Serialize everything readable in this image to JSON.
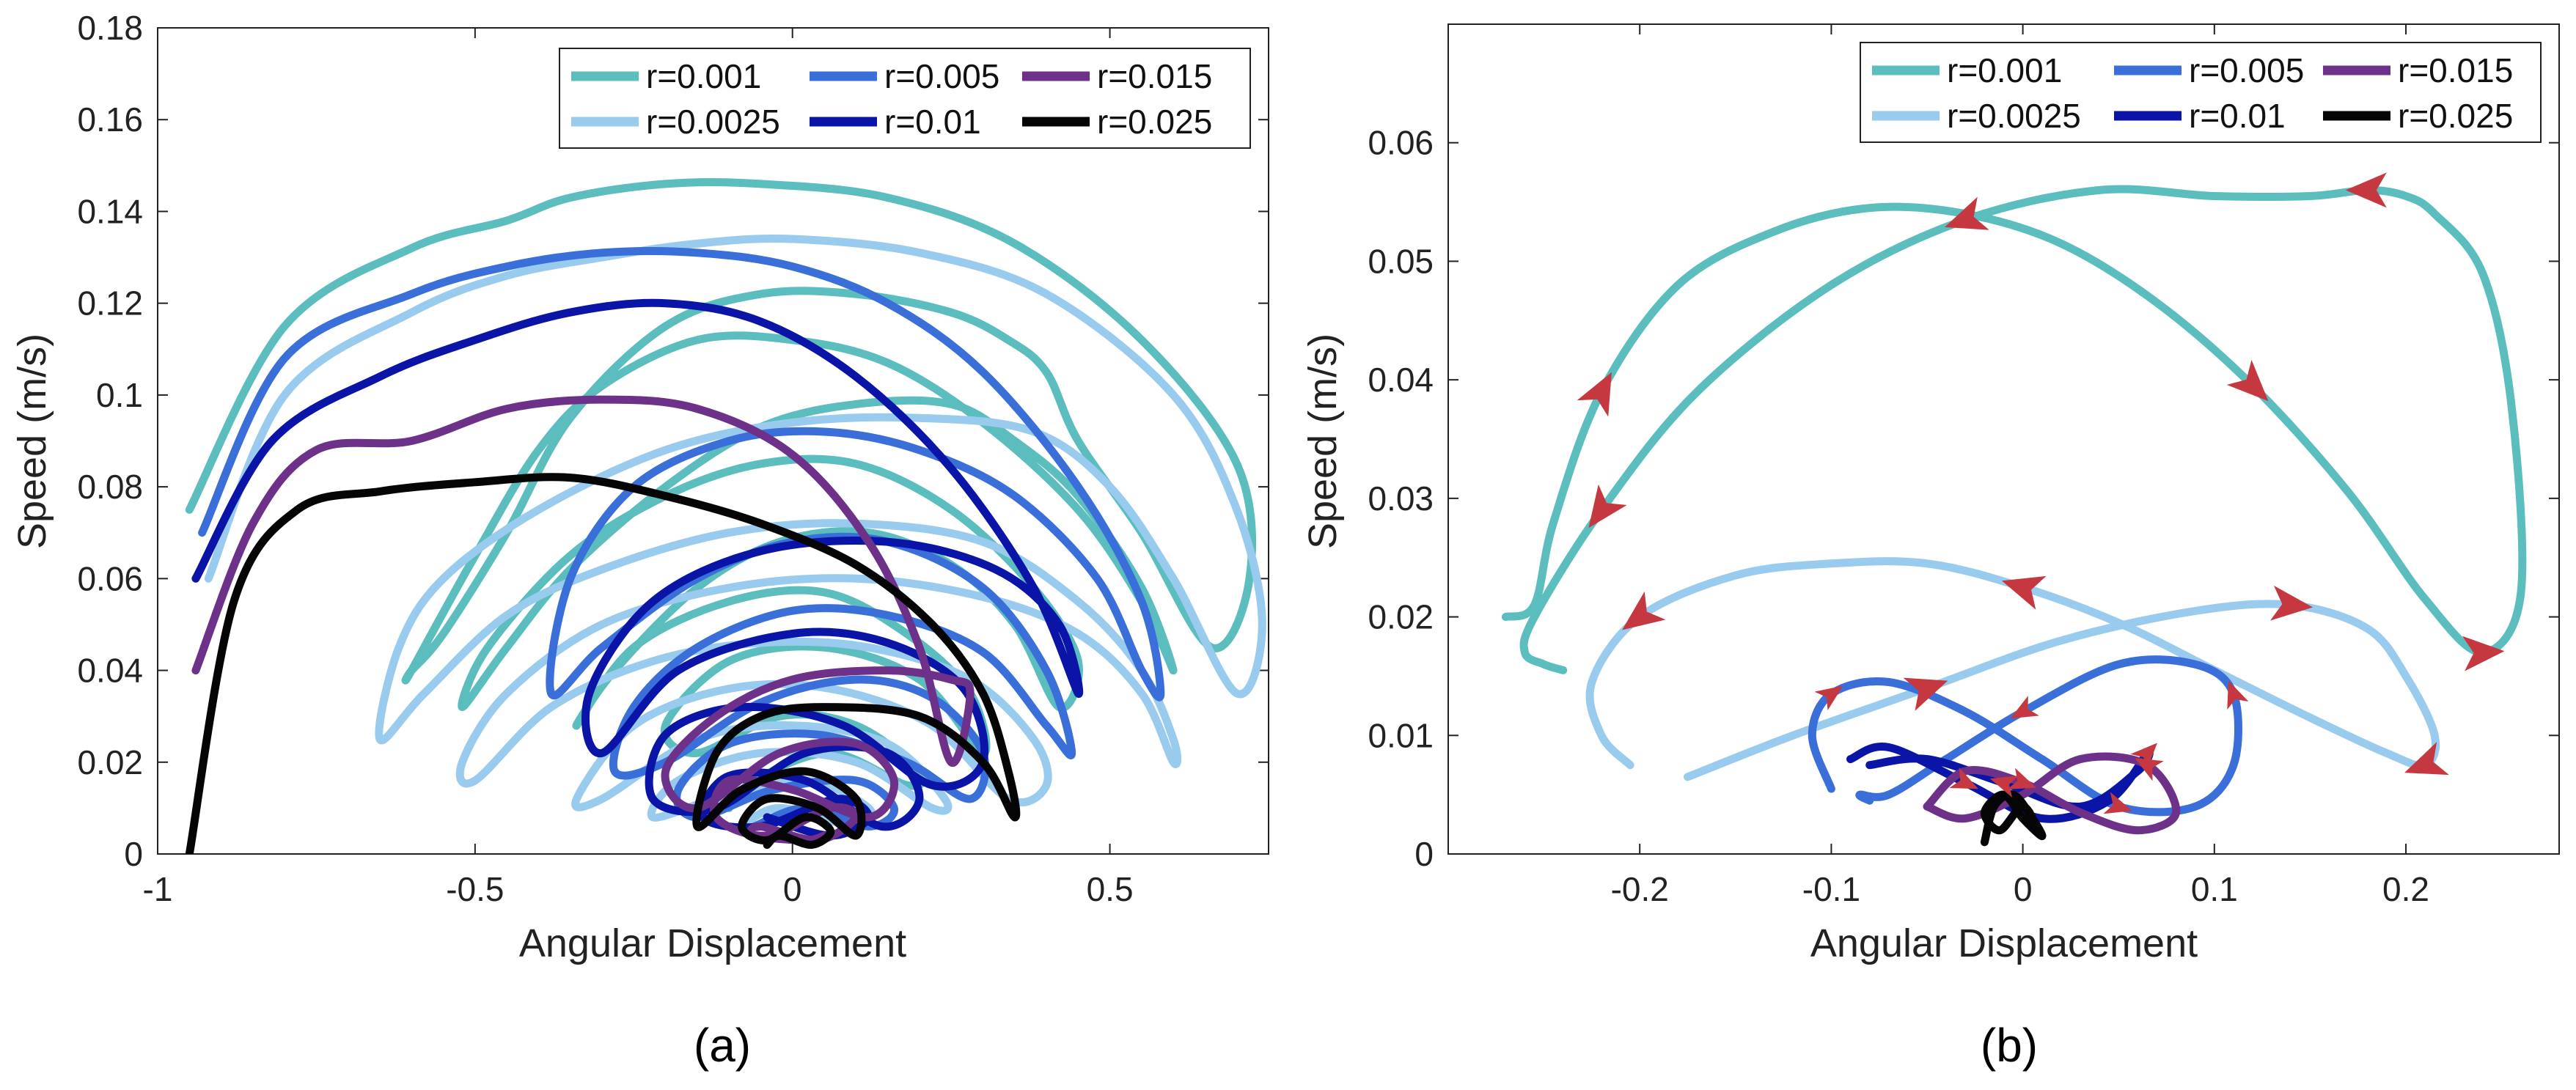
{
  "figure": {
    "captions": [
      "(a)",
      "(b)"
    ]
  },
  "colors": {
    "r=0.001": "#5BBDBE",
    "r=0.0025": "#99CBEE",
    "r=0.005": "#3A6FD9",
    "r=0.01": "#0A14A6",
    "r=0.015": "#6E3189",
    "r=0.025": "#050505",
    "arrow": "#C63840",
    "axis": "#222222"
  },
  "chart_data": [
    {
      "type": "line",
      "caption": "(a)",
      "xlabel": "Angular Displacement",
      "ylabel": "Speed (m/s)",
      "xlim": [
        -1,
        0.75
      ],
      "ylim": [
        0,
        0.18
      ],
      "xticks": [
        -1,
        -0.5,
        0,
        0.5
      ],
      "xtick_labels": [
        "-1",
        "-0.5",
        "0",
        "0.5"
      ],
      "yticks": [
        0,
        0.02,
        0.04,
        0.06,
        0.08,
        0.1,
        0.12,
        0.14,
        0.16,
        0.18
      ],
      "ytick_labels": [
        "0",
        "0.02",
        "0.04",
        "0.06",
        "0.08",
        "0.1",
        "0.12",
        "0.14",
        "0.16",
        "0.18"
      ],
      "legend": {
        "position": "top-right",
        "entries": [
          "r=0.001",
          "r=0.0025",
          "r=0.005",
          "r=0.01",
          "r=0.015",
          "r=0.025"
        ]
      },
      "series": [
        {
          "name": "r=0.001",
          "x": [
            -0.95,
            -0.8,
            -0.6,
            -0.45,
            -0.35,
            -0.2,
            -0.05,
            0.15,
            0.35,
            0.55,
            0.7,
            0.72,
            0.66,
            0.55,
            0.45,
            0.4,
            0.34,
            0.25,
            0.1,
            -0.05,
            -0.2,
            -0.35,
            -0.45,
            -0.55,
            -0.6,
            -0.6,
            -0.5,
            -0.4,
            -0.3,
            -0.15,
            0.0,
            0.15,
            0.3,
            0.45,
            0.55,
            0.6,
            0.55,
            0.45,
            0.35,
            0.25,
            0.1,
            -0.05,
            -0.2,
            -0.35,
            -0.45,
            -0.52,
            -0.48,
            -0.35,
            -0.2,
            -0.05,
            0.1,
            0.25,
            0.38,
            0.45,
            0.42,
            0.35,
            0.25,
            0.12,
            -0.02,
            -0.15,
            -0.28,
            -0.34,
            -0.25,
            -0.1,
            0.05,
            0.18,
            0.28,
            0.3,
            0.2,
            0.05,
            -0.1,
            -0.2,
            -0.15,
            -0.02,
            0.1,
            0.2,
            0.18,
            0.06,
            -0.06,
            -0.1
          ],
          "y": [
            0.075,
            0.115,
            0.132,
            0.138,
            0.143,
            0.146,
            0.146,
            0.143,
            0.133,
            0.112,
            0.085,
            0.06,
            0.045,
            0.07,
            0.09,
            0.105,
            0.112,
            0.118,
            0.122,
            0.122,
            0.115,
            0.095,
            0.07,
            0.048,
            0.04,
            0.04,
            0.065,
            0.088,
            0.102,
            0.112,
            0.112,
            0.107,
            0.094,
            0.075,
            0.055,
            0.04,
            0.058,
            0.078,
            0.09,
            0.098,
            0.098,
            0.093,
            0.08,
            0.062,
            0.045,
            0.032,
            0.045,
            0.065,
            0.078,
            0.085,
            0.085,
            0.075,
            0.058,
            0.042,
            0.032,
            0.05,
            0.063,
            0.07,
            0.068,
            0.058,
            0.04,
            0.028,
            0.045,
            0.055,
            0.057,
            0.048,
            0.035,
            0.022,
            0.038,
            0.045,
            0.042,
            0.028,
            0.022,
            0.03,
            0.028,
            0.018,
            0.015,
            0.022,
            0.016,
            0.01
          ]
        },
        {
          "name": "r=0.0025",
          "x": [
            -0.92,
            -0.8,
            -0.6,
            -0.45,
            -0.3,
            -0.15,
            0.0,
            0.2,
            0.4,
            0.6,
            0.7,
            0.74,
            0.7,
            0.6,
            0.5,
            0.38,
            0.2,
            0.0,
            -0.2,
            -0.4,
            -0.55,
            -0.62,
            -0.65,
            -0.58,
            -0.45,
            -0.3,
            -0.1,
            0.1,
            0.3,
            0.45,
            0.55,
            0.6,
            0.6,
            0.55,
            0.45,
            0.3,
            0.1,
            -0.1,
            -0.3,
            -0.45,
            -0.52,
            -0.5,
            -0.38,
            -0.22,
            -0.05,
            0.12,
            0.28,
            0.38,
            0.4,
            0.34,
            0.22,
            0.06,
            -0.1,
            -0.25,
            -0.34,
            -0.3,
            -0.15,
            0.0,
            0.15,
            0.24,
            0.22,
            0.1,
            -0.05,
            -0.18,
            -0.22,
            -0.12,
            0.02,
            0.12,
            0.1,
            -0.02,
            -0.08
          ],
          "y": [
            0.06,
            0.1,
            0.118,
            0.126,
            0.13,
            0.133,
            0.134,
            0.131,
            0.122,
            0.1,
            0.075,
            0.05,
            0.035,
            0.06,
            0.08,
            0.092,
            0.095,
            0.094,
            0.088,
            0.075,
            0.06,
            0.045,
            0.025,
            0.035,
            0.052,
            0.062,
            0.07,
            0.072,
            0.068,
            0.055,
            0.04,
            0.025,
            0.02,
            0.035,
            0.048,
            0.056,
            0.06,
            0.058,
            0.05,
            0.035,
            0.02,
            0.016,
            0.032,
            0.042,
            0.046,
            0.045,
            0.038,
            0.025,
            0.015,
            0.012,
            0.028,
            0.036,
            0.036,
            0.028,
            0.012,
            0.012,
            0.025,
            0.028,
            0.024,
            0.012,
            0.01,
            0.02,
            0.022,
            0.016,
            0.008,
            0.012,
            0.016,
            0.01,
            0.006,
            0.01,
            0.006
          ]
        },
        {
          "name": "r=0.005",
          "x": [
            -0.93,
            -0.8,
            -0.6,
            -0.45,
            -0.3,
            -0.15,
            0.0,
            0.15,
            0.3,
            0.45,
            0.55,
            0.58,
            0.55,
            0.48,
            0.35,
            0.2,
            0.05,
            -0.1,
            -0.25,
            -0.35,
            -0.38,
            -0.3,
            -0.15,
            0.0,
            0.15,
            0.3,
            0.4,
            0.44,
            0.4,
            0.3,
            0.15,
            0.0,
            -0.15,
            -0.25,
            -0.28,
            -0.2,
            -0.05,
            0.1,
            0.22,
            0.3,
            0.28,
            0.18,
            0.04,
            -0.1,
            -0.18,
            -0.15,
            -0.03,
            0.1,
            0.16,
            0.12,
            0.02,
            -0.06
          ],
          "y": [
            0.07,
            0.108,
            0.122,
            0.128,
            0.131,
            0.131,
            0.128,
            0.12,
            0.105,
            0.08,
            0.055,
            0.035,
            0.04,
            0.06,
            0.078,
            0.088,
            0.092,
            0.09,
            0.08,
            0.06,
            0.035,
            0.045,
            0.06,
            0.068,
            0.068,
            0.058,
            0.04,
            0.022,
            0.028,
            0.044,
            0.052,
            0.053,
            0.045,
            0.032,
            0.018,
            0.02,
            0.033,
            0.038,
            0.034,
            0.022,
            0.012,
            0.02,
            0.026,
            0.024,
            0.014,
            0.008,
            0.014,
            0.016,
            0.01,
            0.006,
            0.01,
            0.006
          ]
        },
        {
          "name": "r=0.01",
          "x": [
            -0.94,
            -0.82,
            -0.65,
            -0.5,
            -0.35,
            -0.2,
            -0.05,
            0.1,
            0.25,
            0.38,
            0.45,
            0.42,
            0.32,
            0.15,
            -0.05,
            -0.22,
            -0.32,
            -0.3,
            -0.18,
            0.0,
            0.15,
            0.27,
            0.3,
            0.22,
            0.08,
            -0.08,
            -0.2,
            -0.22,
            -0.12,
            0.02,
            0.15,
            0.2,
            0.14,
            0.02,
            -0.1,
            -0.14,
            -0.05,
            0.07,
            0.12,
            0.06,
            -0.04
          ],
          "y": [
            0.06,
            0.09,
            0.104,
            0.112,
            0.118,
            0.12,
            0.116,
            0.104,
            0.084,
            0.058,
            0.035,
            0.05,
            0.062,
            0.068,
            0.066,
            0.055,
            0.035,
            0.022,
            0.04,
            0.048,
            0.046,
            0.036,
            0.02,
            0.015,
            0.028,
            0.032,
            0.026,
            0.012,
            0.01,
            0.022,
            0.022,
            0.012,
            0.006,
            0.016,
            0.017,
            0.008,
            0.006,
            0.012,
            0.008,
            0.004,
            0.008
          ]
        },
        {
          "name": "r=0.015",
          "x": [
            -0.94,
            -0.85,
            -0.75,
            -0.6,
            -0.45,
            -0.3,
            -0.15,
            0.0,
            0.12,
            0.2,
            0.25,
            0.28,
            0.25,
            0.15,
            0.0,
            -0.12,
            -0.2,
            -0.15,
            -0.02,
            0.1,
            0.16,
            0.12,
            0.0,
            -0.1,
            -0.12,
            -0.04,
            0.06,
            0.1,
            0.04,
            -0.05,
            -0.06,
            0.02,
            0.05
          ],
          "y": [
            0.04,
            0.072,
            0.088,
            0.09,
            0.097,
            0.099,
            0.097,
            0.087,
            0.068,
            0.045,
            0.02,
            0.035,
            0.038,
            0.04,
            0.038,
            0.03,
            0.018,
            0.01,
            0.022,
            0.024,
            0.016,
            0.008,
            0.014,
            0.016,
            0.008,
            0.004,
            0.01,
            0.008,
            0.003,
            0.006,
            0.004,
            0.003,
            0.004
          ]
        },
        {
          "name": "r=0.025",
          "x": [
            -0.95,
            -0.88,
            -0.78,
            -0.65,
            -0.5,
            -0.35,
            -0.2,
            -0.05,
            0.1,
            0.22,
            0.3,
            0.34,
            0.35,
            0.3,
            0.2,
            0.05,
            -0.05,
            -0.12,
            -0.15,
            -0.08,
            0.02,
            0.1,
            0.1,
            0.04,
            -0.04,
            -0.08,
            -0.04,
            0.02,
            0.06,
            0.03,
            -0.02,
            -0.04
          ],
          "y": [
            0.0,
            0.055,
            0.075,
            0.079,
            0.081,
            0.082,
            0.078,
            0.072,
            0.063,
            0.05,
            0.035,
            0.018,
            0.008,
            0.02,
            0.03,
            0.032,
            0.03,
            0.022,
            0.006,
            0.014,
            0.018,
            0.012,
            0.004,
            0.01,
            0.012,
            0.006,
            0.003,
            0.008,
            0.005,
            0.002,
            0.004,
            0.002
          ]
        }
      ]
    },
    {
      "type": "line",
      "caption": "(b)",
      "xlabel": "Angular Displacement",
      "ylabel": "Speed (m/s)",
      "xlim": [
        -0.3,
        0.28
      ],
      "ylim": [
        0,
        0.07
      ],
      "xticks": [
        -0.2,
        -0.1,
        0,
        0.1,
        0.2
      ],
      "xtick_labels": [
        "-0.2",
        "-0.1",
        "0",
        "0.1",
        "0.2"
      ],
      "yticks": [
        0,
        0.01,
        0.02,
        0.03,
        0.04,
        0.05,
        0.06
      ],
      "ytick_labels": [
        "0",
        "0.01",
        "0.02",
        "0.03",
        "0.04",
        "0.05",
        "0.06"
      ],
      "legend": {
        "position": "top-right",
        "entries": [
          "r=0.001",
          "r=0.0025",
          "r=0.005",
          "r=0.01",
          "r=0.015",
          "r=0.025"
        ]
      },
      "series": [
        {
          "name": "r=0.001",
          "x": [
            -0.27,
            -0.255,
            -0.245,
            -0.22,
            -0.18,
            -0.13,
            -0.08,
            -0.03,
            0.02,
            0.07,
            0.12,
            0.17,
            0.21,
            0.24,
            0.26,
            0.255,
            0.24,
            0.215,
            0.2,
            0.18,
            0.15,
            0.1,
            0.04,
            -0.03,
            -0.1,
            -0.17,
            -0.22,
            -0.255,
            -0.26,
            -0.25,
            -0.24
          ],
          "y": [
            0.02,
            0.021,
            0.028,
            0.039,
            0.048,
            0.0525,
            0.0545,
            0.054,
            0.0515,
            0.0465,
            0.0395,
            0.0305,
            0.0215,
            0.017,
            0.022,
            0.038,
            0.049,
            0.054,
            0.0555,
            0.056,
            0.0555,
            0.0555,
            0.056,
            0.0535,
            0.048,
            0.039,
            0.029,
            0.02,
            0.017,
            0.016,
            0.0155
          ],
          "arrows_at": [
            3,
            10,
            13,
            19,
            23,
            26
          ]
        },
        {
          "name": "r=0.0025",
          "x": [
            -0.175,
            -0.12,
            -0.05,
            0.02,
            0.09,
            0.14,
            0.18,
            0.2,
            0.215,
            0.21,
            0.19,
            0.15,
            0.1,
            0.05,
            0.0,
            -0.05,
            -0.1,
            -0.15,
            -0.2,
            -0.225,
            -0.22,
            -0.205
          ],
          "y": [
            0.0065,
            0.01,
            0.014,
            0.018,
            0.0205,
            0.021,
            0.019,
            0.015,
            0.01,
            0.0075,
            0.0085,
            0.0115,
            0.0155,
            0.0195,
            0.0225,
            0.0245,
            0.0245,
            0.0235,
            0.02,
            0.0145,
            0.01,
            0.0075
          ],
          "arrows_at": [
            2,
            5,
            9,
            14,
            18
          ]
        },
        {
          "name": "r=0.005",
          "x": [
            -0.1,
            -0.11,
            -0.1,
            -0.07,
            -0.03,
            0.01,
            0.05,
            0.09,
            0.11,
            0.11,
            0.09,
            0.05,
            0.0,
            -0.04,
            -0.07,
            -0.085,
            -0.08
          ],
          "y": [
            0.0055,
            0.01,
            0.0135,
            0.0145,
            0.012,
            0.008,
            0.004,
            0.004,
            0.0075,
            0.0135,
            0.016,
            0.016,
            0.012,
            0.008,
            0.005,
            0.005,
            0.0045
          ],
          "arrows_at": [
            2,
            6,
            9,
            12
          ]
        },
        {
          "name": "r=0.01",
          "x": [
            -0.09,
            -0.07,
            -0.03,
            0.01,
            0.045,
            0.065,
            0.06,
            0.03,
            -0.01,
            -0.05,
            -0.08
          ],
          "y": [
            0.008,
            0.009,
            0.006,
            0.003,
            0.0045,
            0.0085,
            0.007,
            0.004,
            0.006,
            0.008,
            0.0075
          ],
          "arrows_at": [
            2,
            5,
            8
          ]
        },
        {
          "name": "r=0.015",
          "x": [
            -0.05,
            -0.03,
            0.0,
            0.03,
            0.06,
            0.08,
            0.065,
            0.03,
            0.0,
            -0.03,
            -0.05
          ],
          "y": [
            0.004,
            0.007,
            0.006,
            0.0035,
            0.002,
            0.0035,
            0.0075,
            0.008,
            0.005,
            0.003,
            0.004
          ],
          "arrows_at": [
            2,
            6
          ]
        },
        {
          "name": "r=0.025",
          "x": [
            -0.02,
            -0.015,
            -0.005,
            0.005,
            0.01,
            0.0,
            -0.01,
            -0.02,
            -0.012,
            0.0,
            0.008
          ],
          "y": [
            0.001,
            0.004,
            0.005,
            0.003,
            0.0015,
            0.003,
            0.005,
            0.0035,
            0.002,
            0.004,
            0.002
          ],
          "arrows_at": []
        }
      ]
    }
  ]
}
